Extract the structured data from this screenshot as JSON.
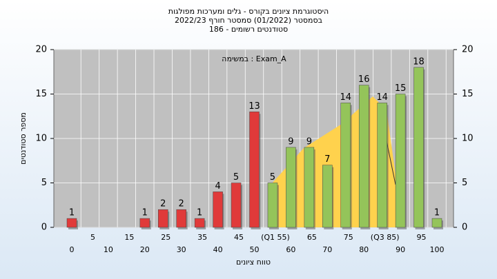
{
  "chart_data": {
    "type": "bar",
    "title": "היסטוגרמת ציונים בקורס - גלים ומערכות מפולגות",
    "subtitle": "בסמסטר  (01/2022)  סמסטר חורף 2022/23",
    "subtitle2": "סטודנטים רשומים - 186",
    "annotation": "במשימה : Exam_A",
    "x_label": "טווח ציונים",
    "y_label": "מספר סטודנטים",
    "categories": [
      "0",
      "5",
      "10",
      "15",
      "20",
      "25",
      "30",
      "35",
      "40",
      "45",
      "50",
      "(Q1 55)",
      "60",
      "65",
      "70",
      "75",
      "80",
      "(Q3 85)",
      "90",
      "95",
      "100"
    ],
    "values": [
      1,
      0,
      0,
      0,
      1,
      2,
      2,
      1,
      4,
      5,
      13,
      5,
      9,
      9,
      7,
      14,
      16,
      14,
      15,
      18,
      1
    ],
    "colors": [
      "#e03a3a",
      "#e03a3a",
      "#e03a3a",
      "#e03a3a",
      "#e03a3a",
      "#e03a3a",
      "#e03a3a",
      "#e03a3a",
      "#e03a3a",
      "#e03a3a",
      "#e03a3a",
      "#94c45a",
      "#94c45a",
      "#94c45a",
      "#94c45a",
      "#94c45a",
      "#94c45a",
      "#94c45a",
      "#94c45a",
      "#94c45a",
      "#94c45a"
    ],
    "ylim": [
      0,
      20
    ],
    "yticks": [
      0,
      5,
      10,
      15,
      20
    ],
    "grid": true
  }
}
